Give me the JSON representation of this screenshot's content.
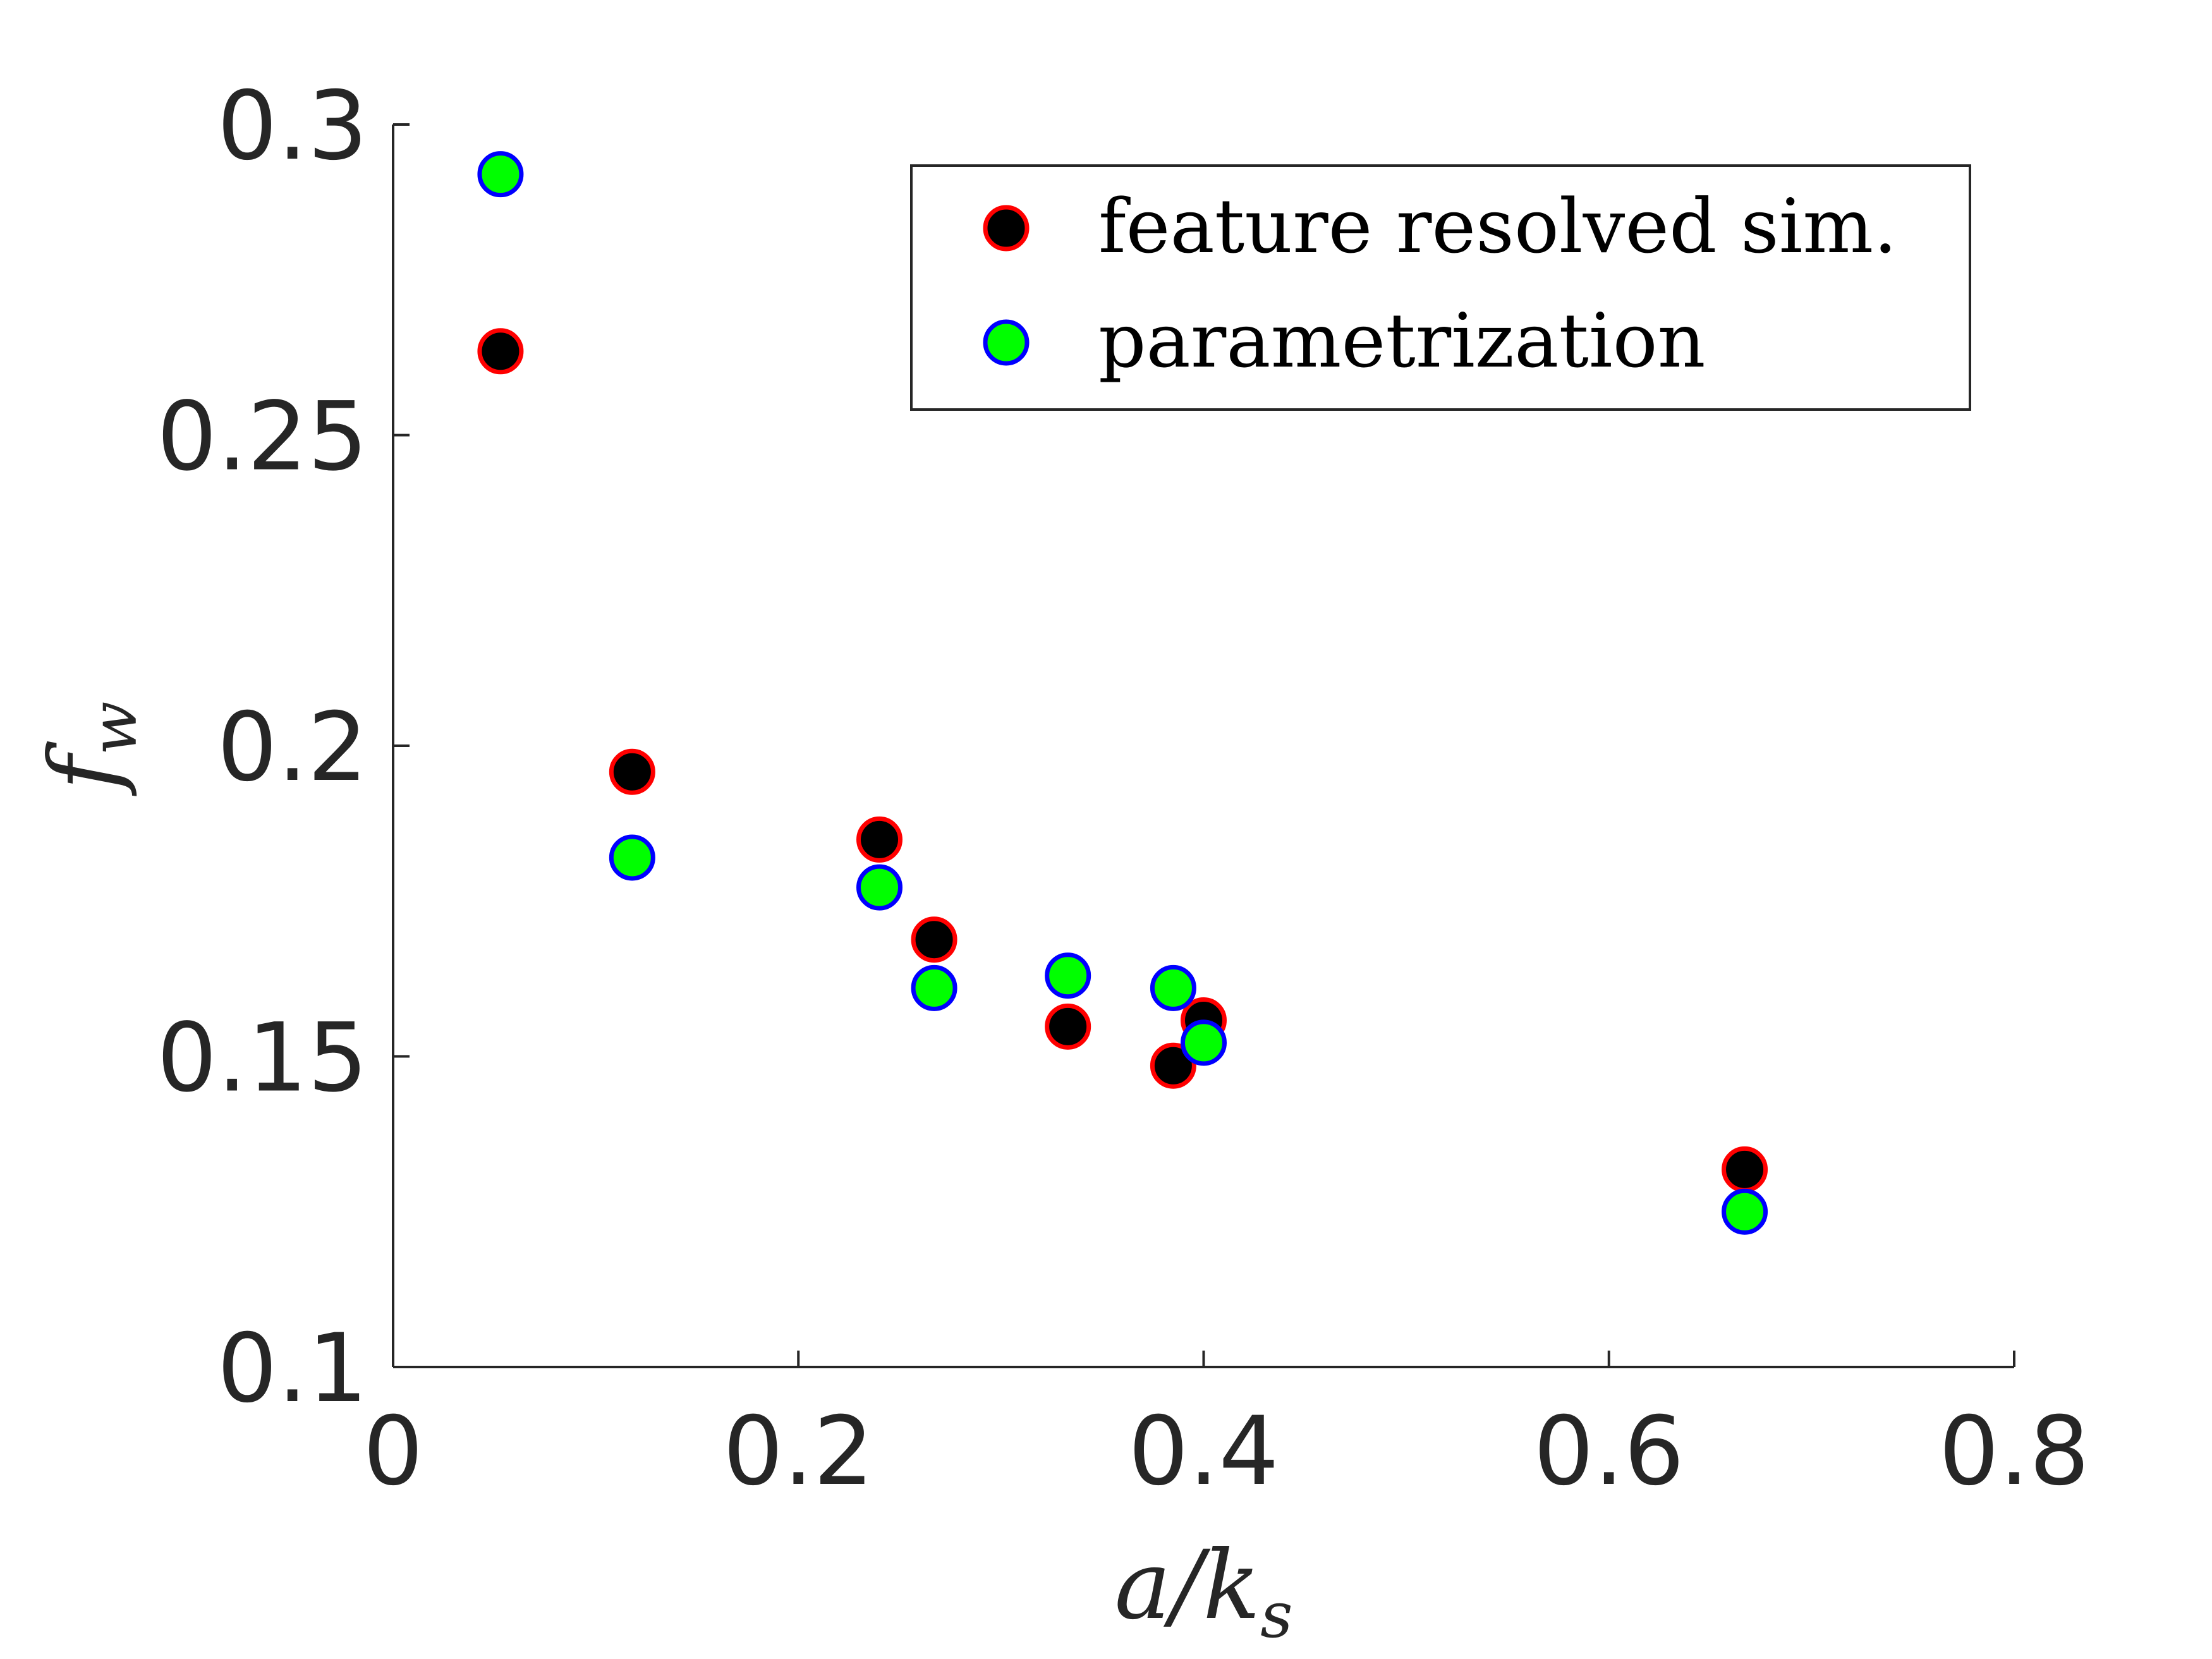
{
  "chart_data": {
    "type": "scatter",
    "xlabel": "a/k_s",
    "ylabel": "f_w",
    "xlim": [
      0,
      0.8
    ],
    "ylim": [
      0.1,
      0.3
    ],
    "xticks": [
      "0",
      "0.2",
      "0.4",
      "0.6",
      "0.8"
    ],
    "yticks": [
      "0.1",
      "0.15",
      "0.2",
      "0.25",
      "0.3"
    ],
    "grid": false,
    "legend_position": "top-right",
    "series": [
      {
        "name": "feature resolved sim.",
        "fill": "#000000",
        "edge": "#ff0000",
        "points": [
          {
            "x": 0.053,
            "y": 0.2635
          },
          {
            "x": 0.118,
            "y": 0.1958
          },
          {
            "x": 0.24,
            "y": 0.1849
          },
          {
            "x": 0.267,
            "y": 0.1688
          },
          {
            "x": 0.333,
            "y": 0.1548
          },
          {
            "x": 0.385,
            "y": 0.1485
          },
          {
            "x": 0.4,
            "y": 0.1558
          },
          {
            "x": 0.667,
            "y": 0.1318
          }
        ]
      },
      {
        "name": "parametrization",
        "fill": "#00ff00",
        "edge": "#0000ff",
        "points": [
          {
            "x": 0.053,
            "y": 0.292
          },
          {
            "x": 0.118,
            "y": 0.182
          },
          {
            "x": 0.24,
            "y": 0.1772
          },
          {
            "x": 0.267,
            "y": 0.161
          },
          {
            "x": 0.333,
            "y": 0.163
          },
          {
            "x": 0.385,
            "y": 0.161
          },
          {
            "x": 0.4,
            "y": 0.1522
          },
          {
            "x": 0.667,
            "y": 0.125
          }
        ]
      }
    ]
  }
}
